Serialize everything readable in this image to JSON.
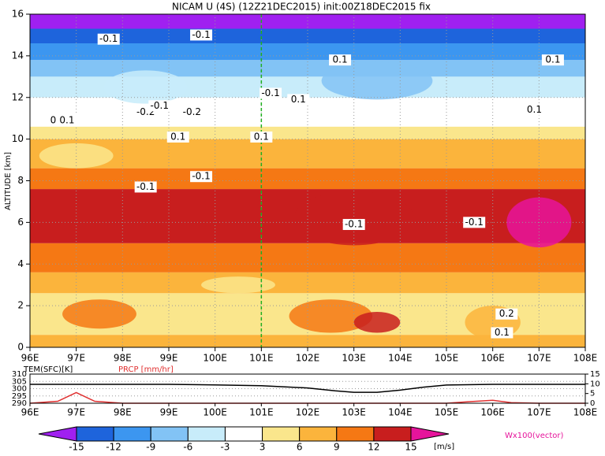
{
  "chart_data": {
    "type": "cross-section",
    "title": "NICAM U (4S) (12Z21DEC2015) init:00Z18DEC2015 fix",
    "y_label": "ALTITUDE [km]",
    "xlim": [
      96,
      108
    ],
    "ylim": [
      0,
      16
    ],
    "xticks": [
      {
        "value": 96,
        "label": "96E"
      },
      {
        "value": 97,
        "label": "97E"
      },
      {
        "value": 98,
        "label": "98E"
      },
      {
        "value": 99,
        "label": "99E"
      },
      {
        "value": 100,
        "label": "100E"
      },
      {
        "value": 101,
        "label": "101E"
      },
      {
        "value": 102,
        "label": "102E"
      },
      {
        "value": 103,
        "label": "103E"
      },
      {
        "value": 104,
        "label": "104E"
      },
      {
        "value": 105,
        "label": "105E"
      },
      {
        "value": 106,
        "label": "106E"
      },
      {
        "value": 107,
        "label": "107E"
      },
      {
        "value": 108,
        "label": "108E"
      }
    ],
    "yticks": [
      0,
      2,
      4,
      6,
      8,
      10,
      12,
      14,
      16
    ],
    "grid": true,
    "vline": 101,
    "annotations": [
      "-0.1",
      "-0.1",
      "0.1",
      "-0.2",
      "-0.1",
      "-0.2",
      "0.1",
      "-0.1",
      "0.1",
      "0.1",
      "-0.1",
      "-0.1",
      "0.1",
      "0.1",
      "-0.1",
      "0.1",
      "0.1",
      "0.2",
      "0.1",
      "-0.1"
    ],
    "colorbar": {
      "unit_label": "[m/s]",
      "vector_label": "Wx100(vector)",
      "levels": [
        -15,
        -12,
        -9,
        -6,
        -3,
        3,
        6,
        9,
        12,
        15
      ],
      "colors": [
        "#a020f0",
        "#1e64dc",
        "#3c96f0",
        "#82c3f5",
        "#c8ecfa",
        "#ffffff",
        "#fae68c",
        "#fbb43c",
        "#f57814",
        "#c81e1e",
        "#e6149b"
      ]
    },
    "sub": {
      "type": "line",
      "y_label": "TEM(SFC)[K]",
      "y2_label": "PRCP [mm/hr]",
      "ylim": [
        290,
        310
      ],
      "yticks": [
        290,
        295,
        300,
        305,
        310
      ],
      "y2lim": [
        0,
        15
      ],
      "y2ticks": [
        0,
        5,
        10,
        15
      ],
      "series": [
        {
          "name": "TEM(SFC)",
          "color": "#000000",
          "x": [
            96,
            97,
            98,
            99,
            100,
            101,
            102,
            102.6,
            103,
            103.5,
            104,
            104.5,
            105,
            106,
            107,
            108
          ],
          "values": [
            303,
            303,
            303,
            303,
            302.6,
            302,
            300.5,
            298.5,
            297.5,
            297.5,
            299,
            301,
            302.5,
            303,
            303,
            303
          ]
        },
        {
          "name": "PRCP",
          "color": "#e03030",
          "axis": "y2",
          "x": [
            96,
            96.6,
            97,
            97.4,
            98,
            105,
            105.5,
            106,
            106.4,
            107,
            108
          ],
          "values": [
            0,
            1,
            5.5,
            1,
            0,
            0,
            0.8,
            1.5,
            0.3,
            0,
            0
          ]
        }
      ]
    }
  }
}
